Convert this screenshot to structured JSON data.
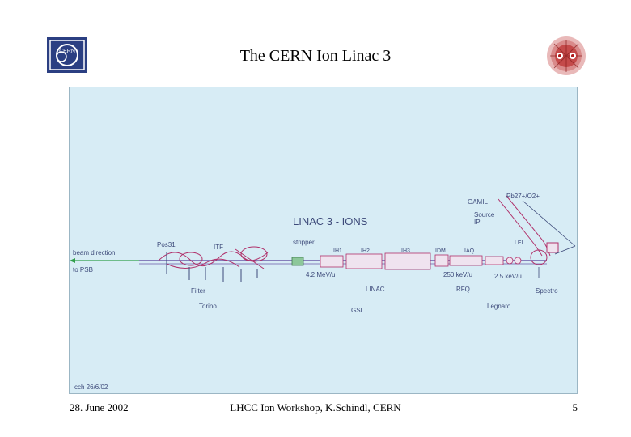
{
  "slide": {
    "title": "The CERN Ion Linac 3",
    "footer_left": "28. June 2002",
    "footer_center": "LHCC Ion Workshop, K.Schindl, CERN",
    "footer_right": "5"
  },
  "logos": {
    "cern_text": "CERN",
    "cern_color": "#2b3f82"
  },
  "diagram": {
    "heading": "LINAC 3 - IONS",
    "labels": {
      "beam_direction": "beam direction",
      "to_psb": "to PSB",
      "pos31": "Pos31",
      "itf": "ITF",
      "stripper": "stripper",
      "filter": "Filter",
      "torino": "Torino",
      "ih1": "IH1",
      "ih2": "IH2",
      "ih3": "IH3",
      "energy_42": "4.2 MeV/u",
      "linac": "LINAC",
      "gsi": "GSI",
      "idm": "IDM",
      "iaq": "IAQ",
      "energy_250": "250 keV/u",
      "energy_25": "2.5 keV/u",
      "rfq": "RFQ",
      "legnaro": "Legnaro",
      "gamil": "GAMIL",
      "source_ip": "Source\nIP",
      "pb_ions": "Pb27+/O2+",
      "lel": "LEL",
      "spectro": "Spectro",
      "signature": "cch 26/6/02"
    },
    "colors": {
      "panel_bg": "#d7ecf5",
      "beamline": "#6a5aa8",
      "accent": "#b0306a",
      "beam_arrow": "#2f9e4a"
    }
  }
}
